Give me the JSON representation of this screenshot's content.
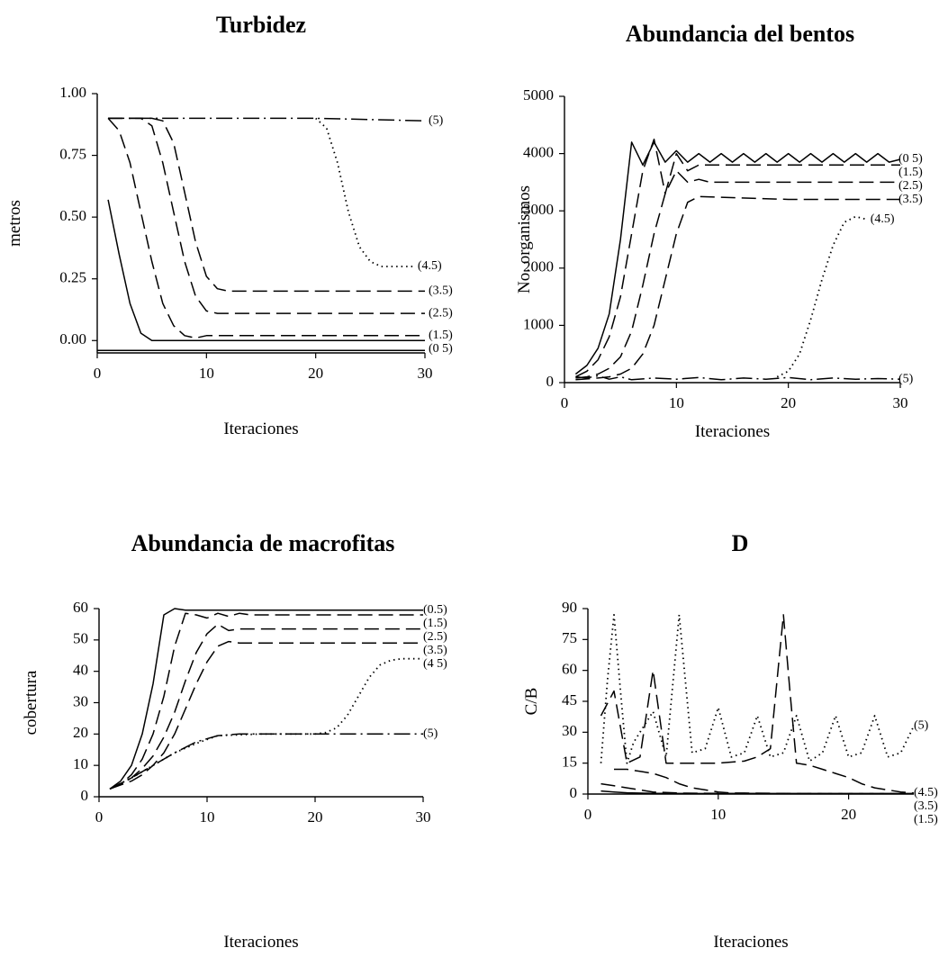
{
  "chart_data": [
    {
      "type": "line",
      "title": "Turbidez",
      "xlabel": "Iteraciones",
      "ylabel": "metros",
      "xlim": [
        0,
        30
      ],
      "ylim": [
        -0.05,
        1.0
      ],
      "xticks": [
        "0",
        "10",
        "20",
        "30"
      ],
      "yticks": [
        "0.00",
        "0.25",
        "0.50",
        "0.75",
        "1.00"
      ],
      "series": [
        {
          "name": "(5)",
          "style": "dashdot",
          "x": [
            1,
            10,
            20,
            30
          ],
          "y": [
            0.9,
            0.9,
            0.9,
            0.89
          ]
        },
        {
          "name": "(4.5)",
          "style": "dotted",
          "x": [
            20,
            21,
            22,
            23,
            24,
            25,
            26,
            27,
            28,
            29
          ],
          "y": [
            0.9,
            0.86,
            0.72,
            0.52,
            0.38,
            0.32,
            0.3,
            0.3,
            0.3,
            0.3
          ]
        },
        {
          "name": "(3.5)",
          "style": "dashed",
          "x": [
            1,
            5,
            6,
            7,
            8,
            9,
            10,
            11,
            12,
            20,
            30
          ],
          "y": [
            0.9,
            0.9,
            0.89,
            0.8,
            0.6,
            0.4,
            0.26,
            0.21,
            0.2,
            0.2,
            0.2
          ]
        },
        {
          "name": "(2.5)",
          "style": "dashed",
          "x": [
            1,
            4,
            5,
            6,
            7,
            8,
            9,
            10,
            11,
            20,
            30
          ],
          "y": [
            0.9,
            0.9,
            0.87,
            0.72,
            0.52,
            0.32,
            0.18,
            0.12,
            0.11,
            0.11,
            0.11
          ]
        },
        {
          "name": "(1.5)",
          "style": "dashed",
          "x": [
            1,
            2,
            3,
            4,
            5,
            6,
            7,
            8,
            9,
            10,
            20,
            30
          ],
          "y": [
            0.9,
            0.85,
            0.72,
            0.52,
            0.32,
            0.15,
            0.06,
            0.02,
            0.01,
            0.02,
            0.02,
            0.02
          ]
        },
        {
          "name": "(0 5)",
          "style": "solid",
          "x": [
            1,
            2,
            3,
            4,
            5,
            10,
            20,
            30
          ],
          "y": [
            0.57,
            0.35,
            0.15,
            0.03,
            0.0,
            0.0,
            0.0,
            0.0
          ]
        },
        {
          "name": "",
          "style": "solid",
          "x": [
            0,
            30
          ],
          "y": [
            -0.04,
            -0.04
          ]
        }
      ]
    },
    {
      "type": "line",
      "title": "Abundancia del bentos",
      "xlabel": "Iteraciones",
      "ylabel": "No. organismos",
      "xlim": [
        0,
        30
      ],
      "ylim": [
        0,
        5000
      ],
      "xticks": [
        "0",
        "10",
        "20",
        "30"
      ],
      "yticks": [
        "0",
        "1000",
        "2000",
        "3000",
        "4000",
        "5000"
      ],
      "series": [
        {
          "name": "(0 5)",
          "style": "solid",
          "x": [
            1,
            2,
            3,
            4,
            5,
            6,
            7,
            8,
            9,
            10,
            11,
            12,
            13,
            14,
            15,
            16,
            17,
            18,
            19,
            20,
            21,
            22,
            23,
            24,
            25,
            26,
            27,
            28,
            29,
            30
          ],
          "y": [
            150,
            300,
            600,
            1200,
            2500,
            4200,
            3800,
            4200,
            3850,
            4050,
            3850,
            4000,
            3850,
            4000,
            3850,
            4000,
            3850,
            4000,
            3850,
            4000,
            3850,
            4000,
            3850,
            4000,
            3850,
            4000,
            3850,
            4000,
            3850,
            3900
          ]
        },
        {
          "name": "(1.5)",
          "style": "dashed",
          "x": [
            1,
            2,
            3,
            4,
            5,
            6,
            7,
            8,
            9,
            10,
            11,
            12,
            20,
            30
          ],
          "y": [
            100,
            200,
            400,
            800,
            1500,
            2600,
            3700,
            4250,
            3300,
            4000,
            3700,
            3800,
            3800,
            3800
          ]
        },
        {
          "name": "(2.5)",
          "style": "dashed",
          "x": [
            1,
            2,
            3,
            4,
            5,
            6,
            7,
            8,
            9,
            10,
            11,
            12,
            13,
            20,
            30
          ],
          "y": [
            80,
            100,
            150,
            250,
            450,
            900,
            1700,
            2600,
            3300,
            3700,
            3500,
            3550,
            3500,
            3500,
            3500
          ]
        },
        {
          "name": "(3.5)",
          "style": "dashed",
          "x": [
            1,
            3,
            4,
            5,
            6,
            7,
            8,
            9,
            10,
            11,
            12,
            20,
            30
          ],
          "y": [
            50,
            80,
            100,
            150,
            250,
            500,
            1000,
            1800,
            2600,
            3150,
            3250,
            3200,
            3200
          ]
        },
        {
          "name": "(4.5)",
          "style": "dotted",
          "x": [
            19,
            20,
            21,
            22,
            23,
            24,
            25,
            26,
            27
          ],
          "y": [
            100,
            200,
            500,
            1100,
            1800,
            2400,
            2800,
            2900,
            2850
          ]
        },
        {
          "name": "(5)",
          "style": "dashdot",
          "x": [
            1,
            2,
            3,
            4,
            5,
            6,
            8,
            10,
            12,
            14,
            16,
            18,
            20,
            22,
            24,
            26,
            28,
            30
          ],
          "y": [
            100,
            80,
            120,
            60,
            100,
            50,
            80,
            60,
            90,
            50,
            80,
            60,
            90,
            50,
            80,
            60,
            70,
            60
          ]
        }
      ]
    },
    {
      "type": "line",
      "title": "Abundancia de macrofitas",
      "xlabel": "Iteraciones",
      "ylabel": "cobertura",
      "xlim": [
        0,
        30
      ],
      "ylim": [
        0,
        60
      ],
      "xticks": [
        "0",
        "10",
        "20",
        "30"
      ],
      "yticks": [
        "0",
        "10",
        "20",
        "30",
        "40",
        "50",
        "60"
      ],
      "series": [
        {
          "name": "(0.5)",
          "style": "solid",
          "x": [
            1,
            2,
            3,
            4,
            5,
            6,
            7,
            8,
            9,
            10,
            20,
            30
          ],
          "y": [
            2.5,
            5,
            10,
            20,
            36,
            58,
            60,
            59.5,
            59.5,
            59.5,
            59.5,
            59.5
          ]
        },
        {
          "name": "(1.5)",
          "style": "dashed",
          "x": [
            1,
            2,
            3,
            4,
            5,
            6,
            7,
            8,
            9,
            10,
            11,
            12,
            13,
            14,
            20,
            30
          ],
          "y": [
            2.5,
            4,
            7,
            12,
            20,
            32,
            48,
            58.5,
            58,
            57,
            58.5,
            57.5,
            58.5,
            58,
            58,
            58
          ]
        },
        {
          "name": "(2.5)",
          "style": "dashed",
          "x": [
            1,
            2,
            3,
            4,
            5,
            6,
            7,
            8,
            9,
            10,
            11,
            12,
            13,
            20,
            30
          ],
          "y": [
            2.5,
            4,
            6,
            9,
            13,
            19,
            27,
            37,
            46,
            52,
            55,
            53,
            53.5,
            53.5,
            53.5
          ]
        },
        {
          "name": "(3.5)",
          "style": "dashed",
          "x": [
            1,
            3,
            4,
            5,
            6,
            7,
            8,
            9,
            10,
            11,
            12,
            13,
            20,
            30
          ],
          "y": [
            2.5,
            5,
            7,
            10,
            14,
            20,
            28,
            36,
            43,
            48,
            49.5,
            49,
            49,
            49
          ]
        },
        {
          "name": "(4 5)",
          "style": "dotted",
          "x": [
            1,
            3,
            5,
            7,
            9,
            11,
            15,
            20,
            21,
            22,
            23,
            24,
            25,
            26,
            27,
            28,
            30
          ],
          "y": [
            2.5,
            6,
            10,
            14,
            17,
            19.5,
            20,
            20,
            20.5,
            22,
            26,
            32,
            38,
            42,
            43.5,
            44,
            44
          ]
        },
        {
          "name": "(5)",
          "style": "dashdot",
          "x": [
            1,
            3,
            5,
            7,
            9,
            11,
            13,
            20,
            30
          ],
          "y": [
            2.5,
            6,
            10,
            14,
            17.5,
            19.5,
            20,
            20,
            20
          ]
        }
      ]
    },
    {
      "type": "line",
      "title": "D",
      "xlabel": "Iteraciones",
      "ylabel": "C/B",
      "xlim": [
        0,
        25
      ],
      "ylim": [
        0,
        90
      ],
      "xticks": [
        "0",
        "10",
        "20"
      ],
      "yticks": [
        "0",
        "15",
        "30",
        "45",
        "60",
        "75",
        "90"
      ],
      "series": [
        {
          "name": "(5)",
          "style": "dotted",
          "x": [
            1,
            1.5,
            2,
            2.5,
            3,
            3.5,
            4,
            5,
            6,
            7,
            8,
            9,
            10,
            11,
            12,
            13,
            14,
            15,
            16,
            17,
            18,
            19,
            20,
            21,
            22,
            23,
            24,
            25
          ],
          "y": [
            15,
            55,
            87,
            50,
            15,
            25,
            30,
            40,
            18,
            87,
            20,
            22,
            42,
            18,
            20,
            38,
            18,
            20,
            38,
            16,
            20,
            38,
            18,
            20,
            38,
            18,
            20,
            33
          ]
        },
        {
          "name": "(4.5)",
          "style": "dashed",
          "x": [
            1,
            2,
            3,
            4,
            5,
            6,
            8,
            10,
            12,
            13,
            14,
            15,
            15.5,
            16,
            17,
            18,
            19,
            20,
            21,
            22,
            23,
            24,
            25
          ],
          "y": [
            38,
            50,
            15,
            18,
            60,
            15,
            15,
            15,
            16,
            18,
            22,
            87,
            50,
            15,
            14,
            12,
            10,
            8,
            5,
            3,
            2,
            1,
            0.5
          ]
        },
        {
          "name": "(3.5)",
          "style": "dashed",
          "x": [
            2,
            3,
            4,
            5,
            6,
            7,
            8,
            9,
            10,
            11,
            12,
            15,
            20,
            25
          ],
          "y": [
            12,
            12,
            11,
            10,
            8,
            5,
            3,
            2,
            1,
            0.5,
            0.5,
            0.3,
            0.2,
            0.2
          ]
        },
        {
          "name": "(1.5)",
          "style": "dashed",
          "x": [
            1,
            2,
            3,
            4,
            5,
            7,
            10,
            15,
            20,
            25
          ],
          "y": [
            5,
            4,
            3,
            2,
            1,
            0.5,
            0.3,
            0.2,
            0.2,
            0.2
          ]
        },
        {
          "name": "",
          "style": "solid",
          "x": [
            1,
            2,
            3,
            5,
            10,
            15,
            20,
            25
          ],
          "y": [
            1.5,
            1,
            0.6,
            0.3,
            0.2,
            0.2,
            0.2,
            0.2
          ]
        }
      ]
    }
  ]
}
